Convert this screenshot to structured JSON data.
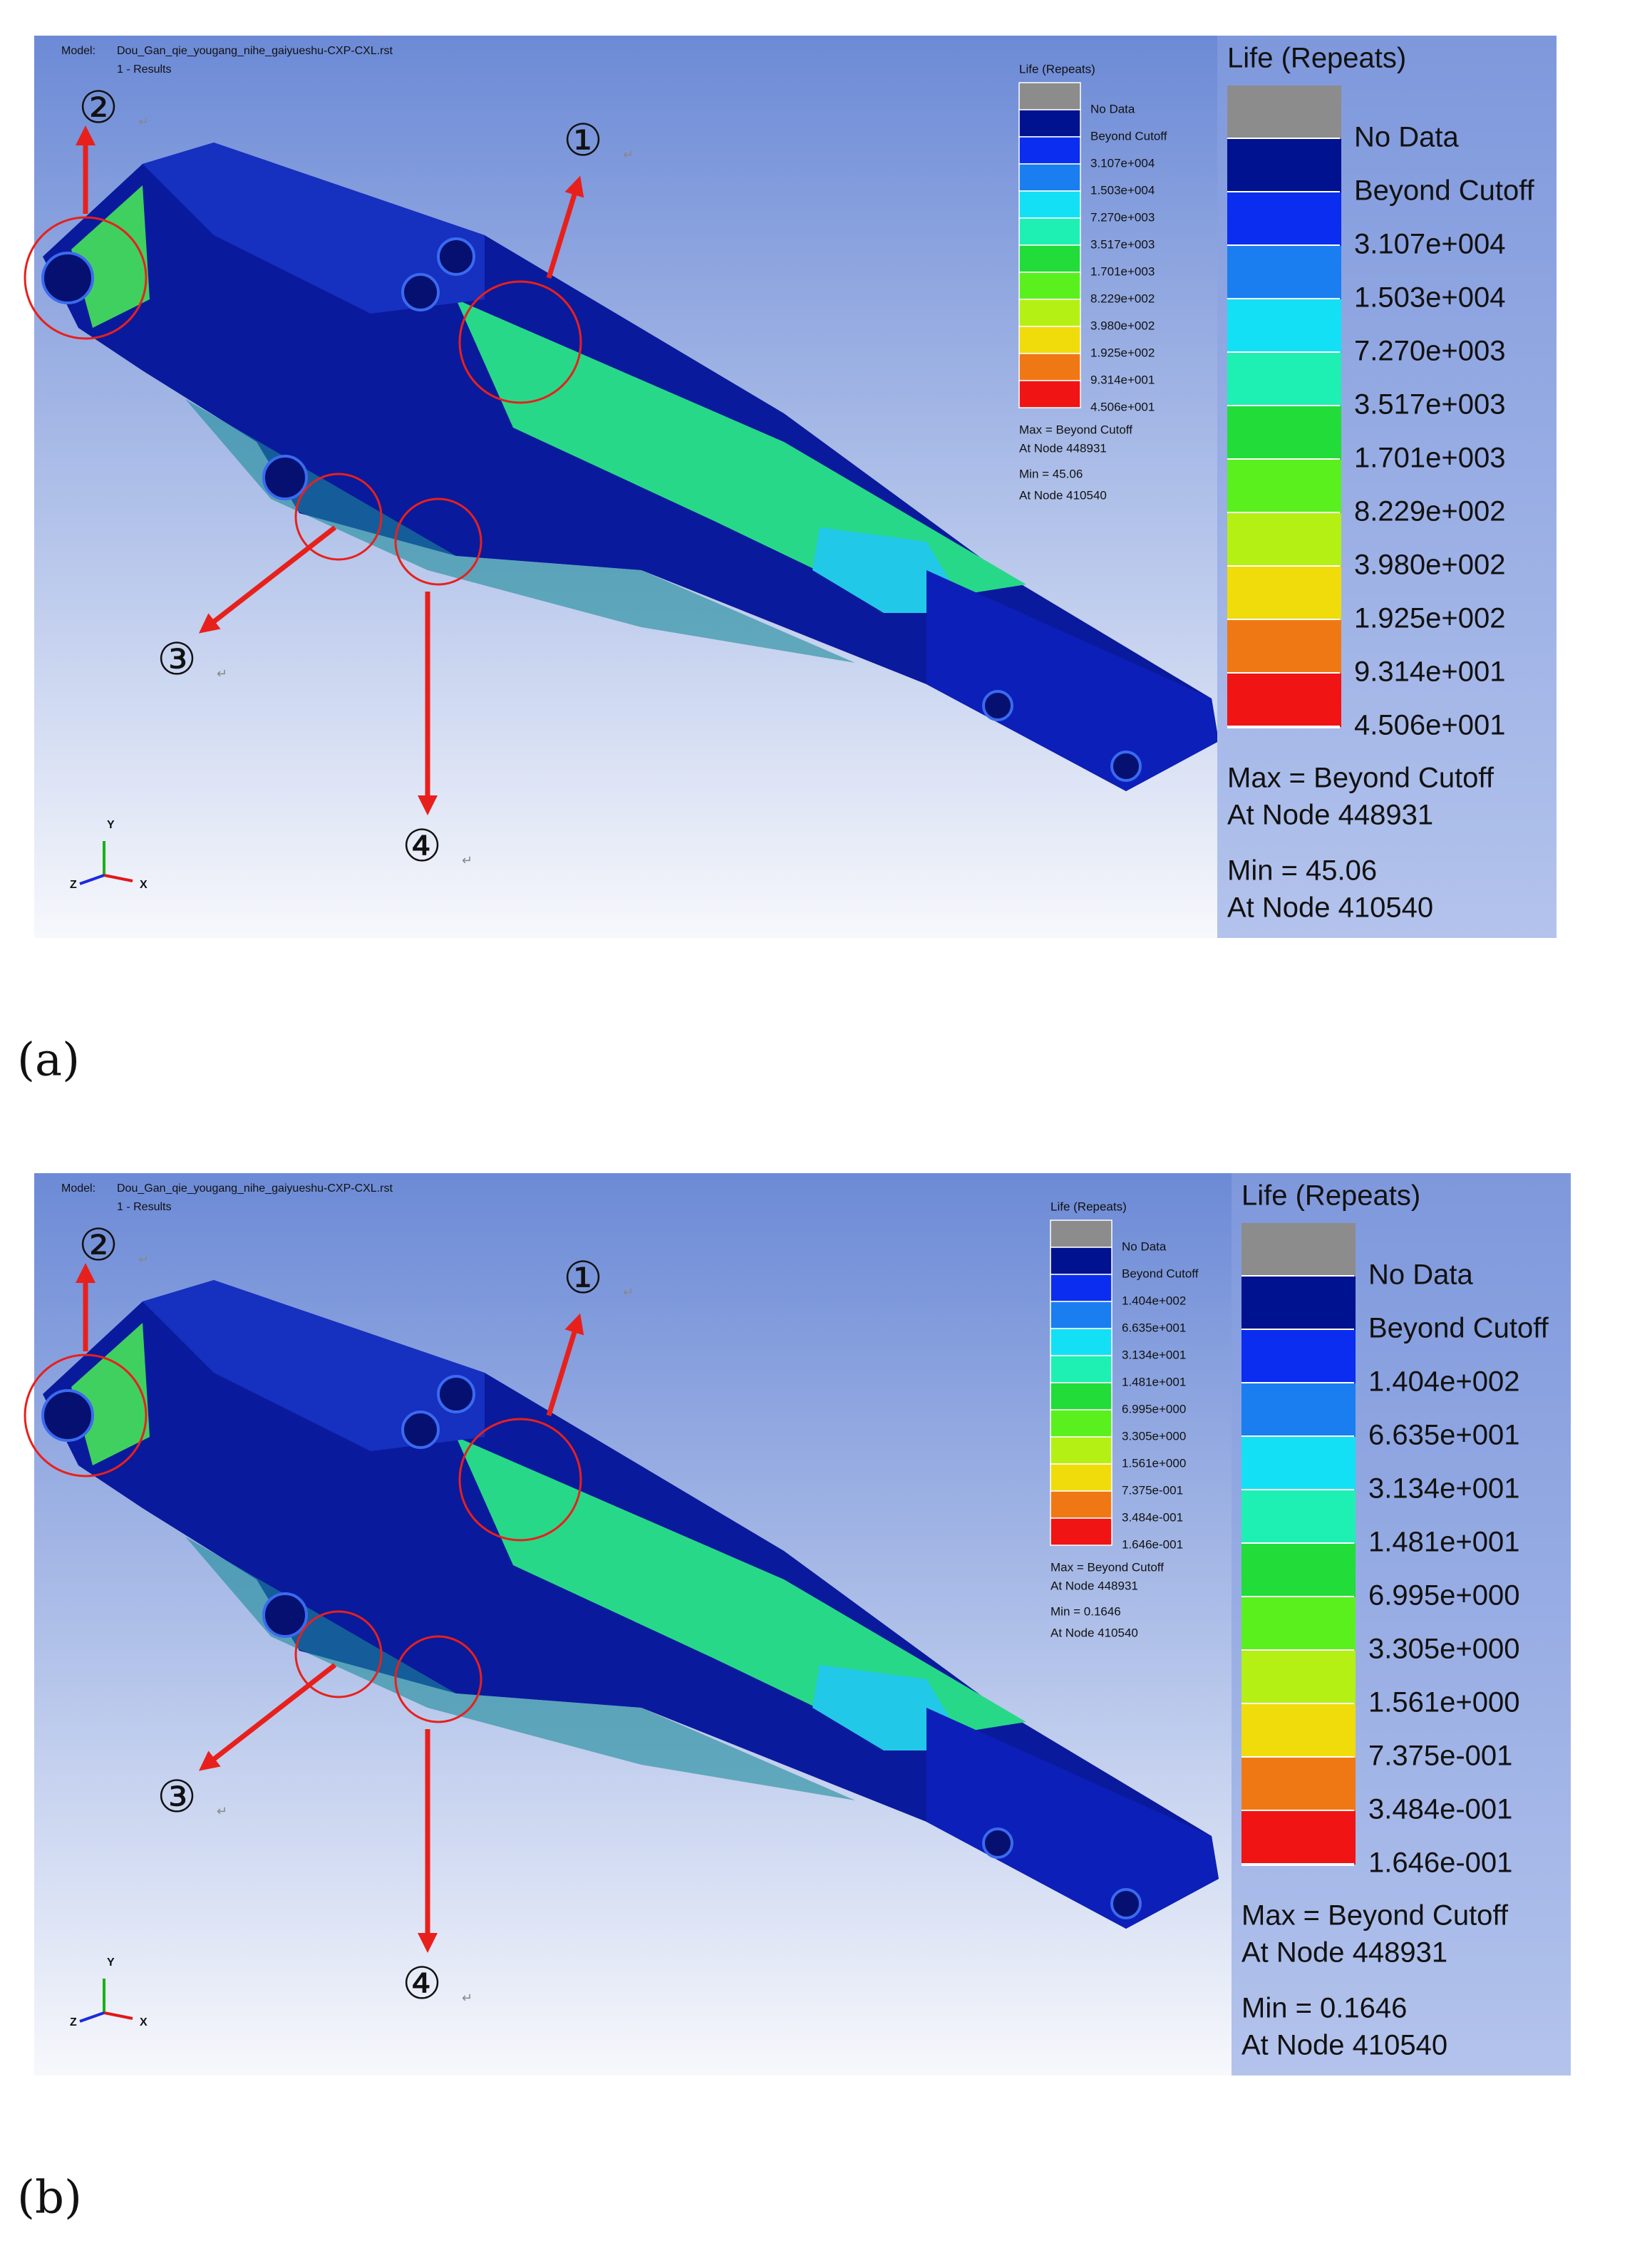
{
  "panels": [
    {
      "label": "(a)",
      "model_label": "Model:",
      "model_name": "Dou_Gan_qie_yougang_nihe_gaiyueshu-CXP-CXL.rst",
      "result": "1 - Results",
      "legend": {
        "title": "Life (Repeats)",
        "entries": [
          "No Data",
          "Beyond Cutoff",
          "3.107e+004",
          "1.503e+004",
          "7.270e+003",
          "3.517e+003",
          "1.701e+003",
          "8.229e+002",
          "3.980e+002",
          "1.925e+002",
          "9.314e+001",
          "4.506e+001"
        ],
        "max": "Max = Beyond Cutoff",
        "max_node": "At Node 448931",
        "min": "Min = 45.06",
        "min_node": "At Node 410540"
      },
      "markers": [
        "①",
        "②",
        "③",
        "④"
      ],
      "return_mark": "↵",
      "axes": [
        "Y",
        "Z",
        "X"
      ]
    },
    {
      "label": "(b)",
      "model_label": "Model:",
      "model_name": "Dou_Gan_qie_yougang_nihe_gaiyueshu-CXP-CXL.rst",
      "result": "1 - Results",
      "legend": {
        "title": "Life (Repeats)",
        "entries": [
          "No Data",
          "Beyond Cutoff",
          "1.404e+002",
          "6.635e+001",
          "3.134e+001",
          "1.481e+001",
          "6.995e+000",
          "3.305e+000",
          "1.561e+000",
          "7.375e-001",
          "3.484e-001",
          "1.646e-001"
        ],
        "max": "Max = Beyond Cutoff",
        "max_node": "At Node 448931",
        "min": "Min = 0.1646",
        "min_node": "At Node 410540"
      },
      "markers": [
        "①",
        "②",
        "③",
        "④"
      ],
      "return_mark": "↵",
      "axes": [
        "Y",
        "Z",
        "X"
      ]
    }
  ]
}
